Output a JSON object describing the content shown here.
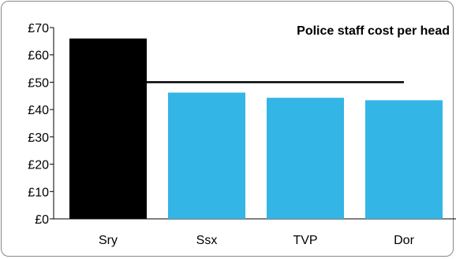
{
  "chart_data": {
    "type": "bar",
    "title": "Police staff cost per head",
    "categories": [
      "Sry",
      "Ssx",
      "TVP",
      "Dor"
    ],
    "values": [
      66,
      46.2,
      44.3,
      43.4
    ],
    "bar_colors": [
      "#000000",
      "#33b5e5",
      "#33b5e5",
      "#33b5e5"
    ],
    "reference_line": {
      "value": 50,
      "from_category": "Sry",
      "to_category": "Dor",
      "color": "#000000"
    },
    "ylim": [
      0,
      70
    ],
    "yticks": [
      0,
      10,
      20,
      30,
      40,
      50,
      60,
      70
    ],
    "ytick_labels": [
      "£0",
      "£10",
      "£20",
      "£30",
      "£40",
      "£50",
      "£60",
      "£70"
    ],
    "grid": false,
    "legend": "none"
  }
}
